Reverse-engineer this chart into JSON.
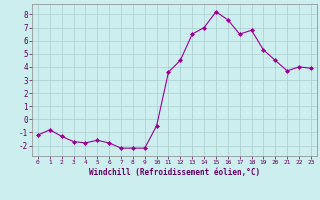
{
  "x": [
    0,
    1,
    2,
    3,
    4,
    5,
    6,
    7,
    8,
    9,
    10,
    11,
    12,
    13,
    14,
    15,
    16,
    17,
    18,
    19,
    20,
    21,
    22,
    23
  ],
  "y": [
    -1.2,
    -0.8,
    -1.3,
    -1.7,
    -1.8,
    -1.6,
    -1.8,
    -2.2,
    -2.2,
    -2.2,
    -0.5,
    3.6,
    4.5,
    6.5,
    7.0,
    8.2,
    7.6,
    6.5,
    6.8,
    5.3,
    4.5,
    3.7,
    4.0,
    3.9
  ],
  "line_color": "#990099",
  "marker": "D",
  "marker_size": 2,
  "bg_color": "#cceeee",
  "grid_color": "#aacccc",
  "xlabel": "Windchill (Refroidissement éolien,°C)",
  "xlabel_color": "#660066",
  "tick_color": "#660066",
  "ylim": [
    -2.8,
    8.8
  ],
  "yticks": [
    -2,
    -1,
    0,
    1,
    2,
    3,
    4,
    5,
    6,
    7,
    8
  ],
  "xlim": [
    -0.5,
    23.5
  ],
  "xticks": [
    0,
    1,
    2,
    3,
    4,
    5,
    6,
    7,
    8,
    9,
    10,
    11,
    12,
    13,
    14,
    15,
    16,
    17,
    18,
    19,
    20,
    21,
    22,
    23
  ]
}
